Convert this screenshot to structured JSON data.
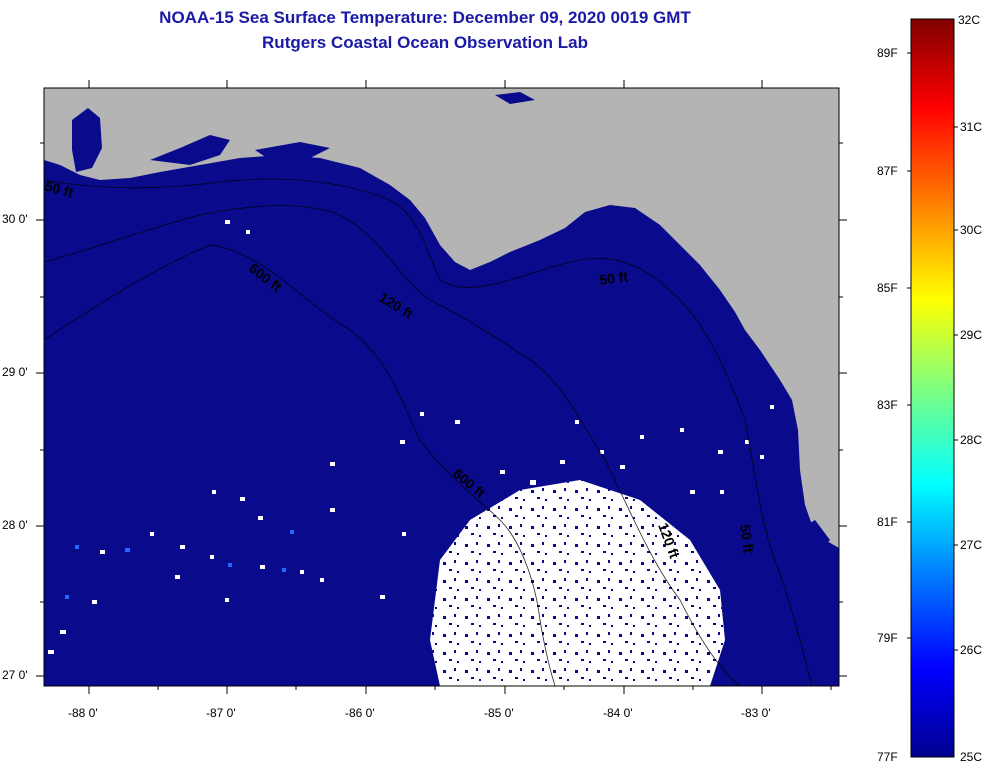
{
  "title": "NOAA-15 Sea Surface Temperature:  December 09, 2020 0019 GMT",
  "subtitle": "Rutgers Coastal Ocean Observation Lab",
  "colors": {
    "land": "#b4b4b4",
    "water_cold": "#0a0a8c",
    "cloud": "#ffffff",
    "contour": "#000000"
  },
  "axes": {
    "x_ticks": [
      "-88 0'",
      "-87 0'",
      "-86 0'",
      "-85 0'",
      "-84 0'",
      "-83 0'"
    ],
    "y_ticks": [
      "30 0'",
      "29 0'",
      "28 0'",
      "27 0'"
    ]
  },
  "contour_labels": [
    "50 ft",
    "600 ft",
    "120 ft",
    "50 ft",
    "600 ft",
    "120 ft",
    "50 ft"
  ],
  "colorbar": {
    "celsius": [
      "32C",
      "31C",
      "30C",
      "29C",
      "28C",
      "27C",
      "26C",
      "25C"
    ],
    "fahrenheit": [
      "89F",
      "87F",
      "85F",
      "83F",
      "81F",
      "79F",
      "77F"
    ]
  }
}
